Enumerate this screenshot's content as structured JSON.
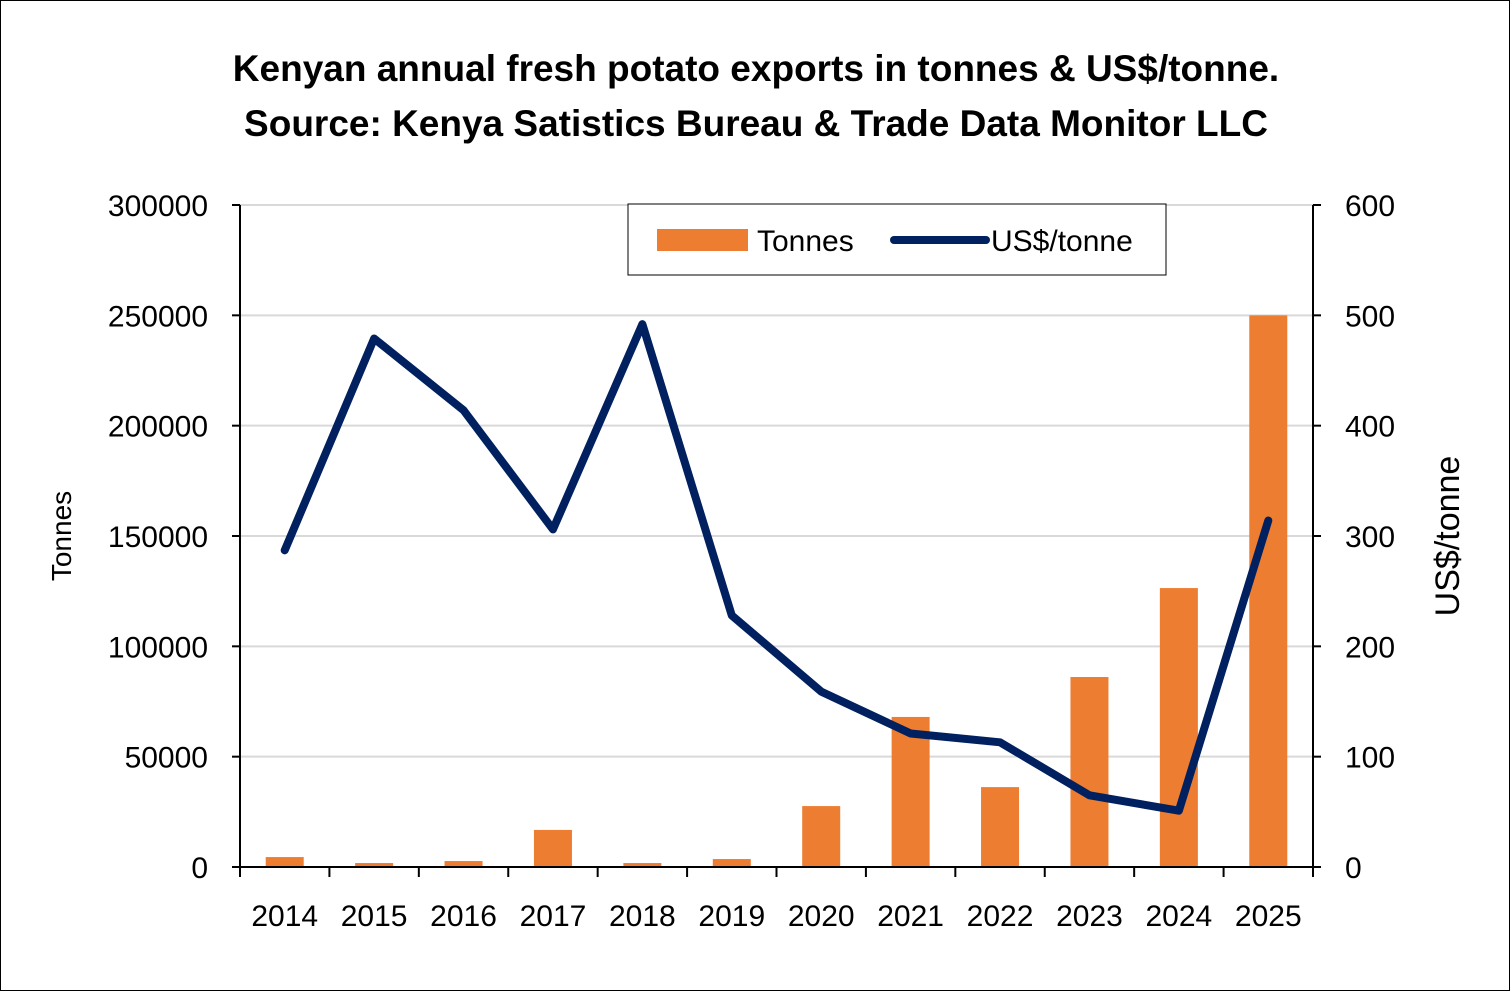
{
  "chart_data": {
    "type": "bar",
    "title_line1": "Kenyan annual fresh potato exports in tonnes & US$/tonne.",
    "title_line2": "Source: Kenya Satistics Bureau & Trade Data Monitor LLC",
    "categories": [
      "2014",
      "2015",
      "2016",
      "2017",
      "2018",
      "2019",
      "2020",
      "2021",
      "2022",
      "2023",
      "2024",
      "2025"
    ],
    "series": [
      {
        "name": "Tonnes",
        "type": "bar",
        "axis": "left",
        "color": "#ED7D31",
        "values": [
          4500,
          1800,
          2700,
          16800,
          1800,
          3600,
          27600,
          68000,
          36200,
          86100,
          126400,
          250000
        ]
      },
      {
        "name": "US$/tonne",
        "type": "line",
        "axis": "right",
        "color": "#002060",
        "values": [
          287,
          479,
          414,
          306,
          492,
          228,
          159,
          121,
          113,
          65,
          51,
          314
        ]
      }
    ],
    "ylabel": "Tonnes",
    "ylabel_right": "US$/tonne",
    "ylim": [
      0,
      300000
    ],
    "ylim_right": [
      0,
      600
    ],
    "yticks": [
      "0",
      "50000",
      "100000",
      "150000",
      "200000",
      "250000",
      "300000"
    ],
    "yticks_right": [
      "0",
      "100",
      "200",
      "300",
      "400",
      "500",
      "600"
    ],
    "grid": true,
    "legend_placement": "top-center"
  }
}
